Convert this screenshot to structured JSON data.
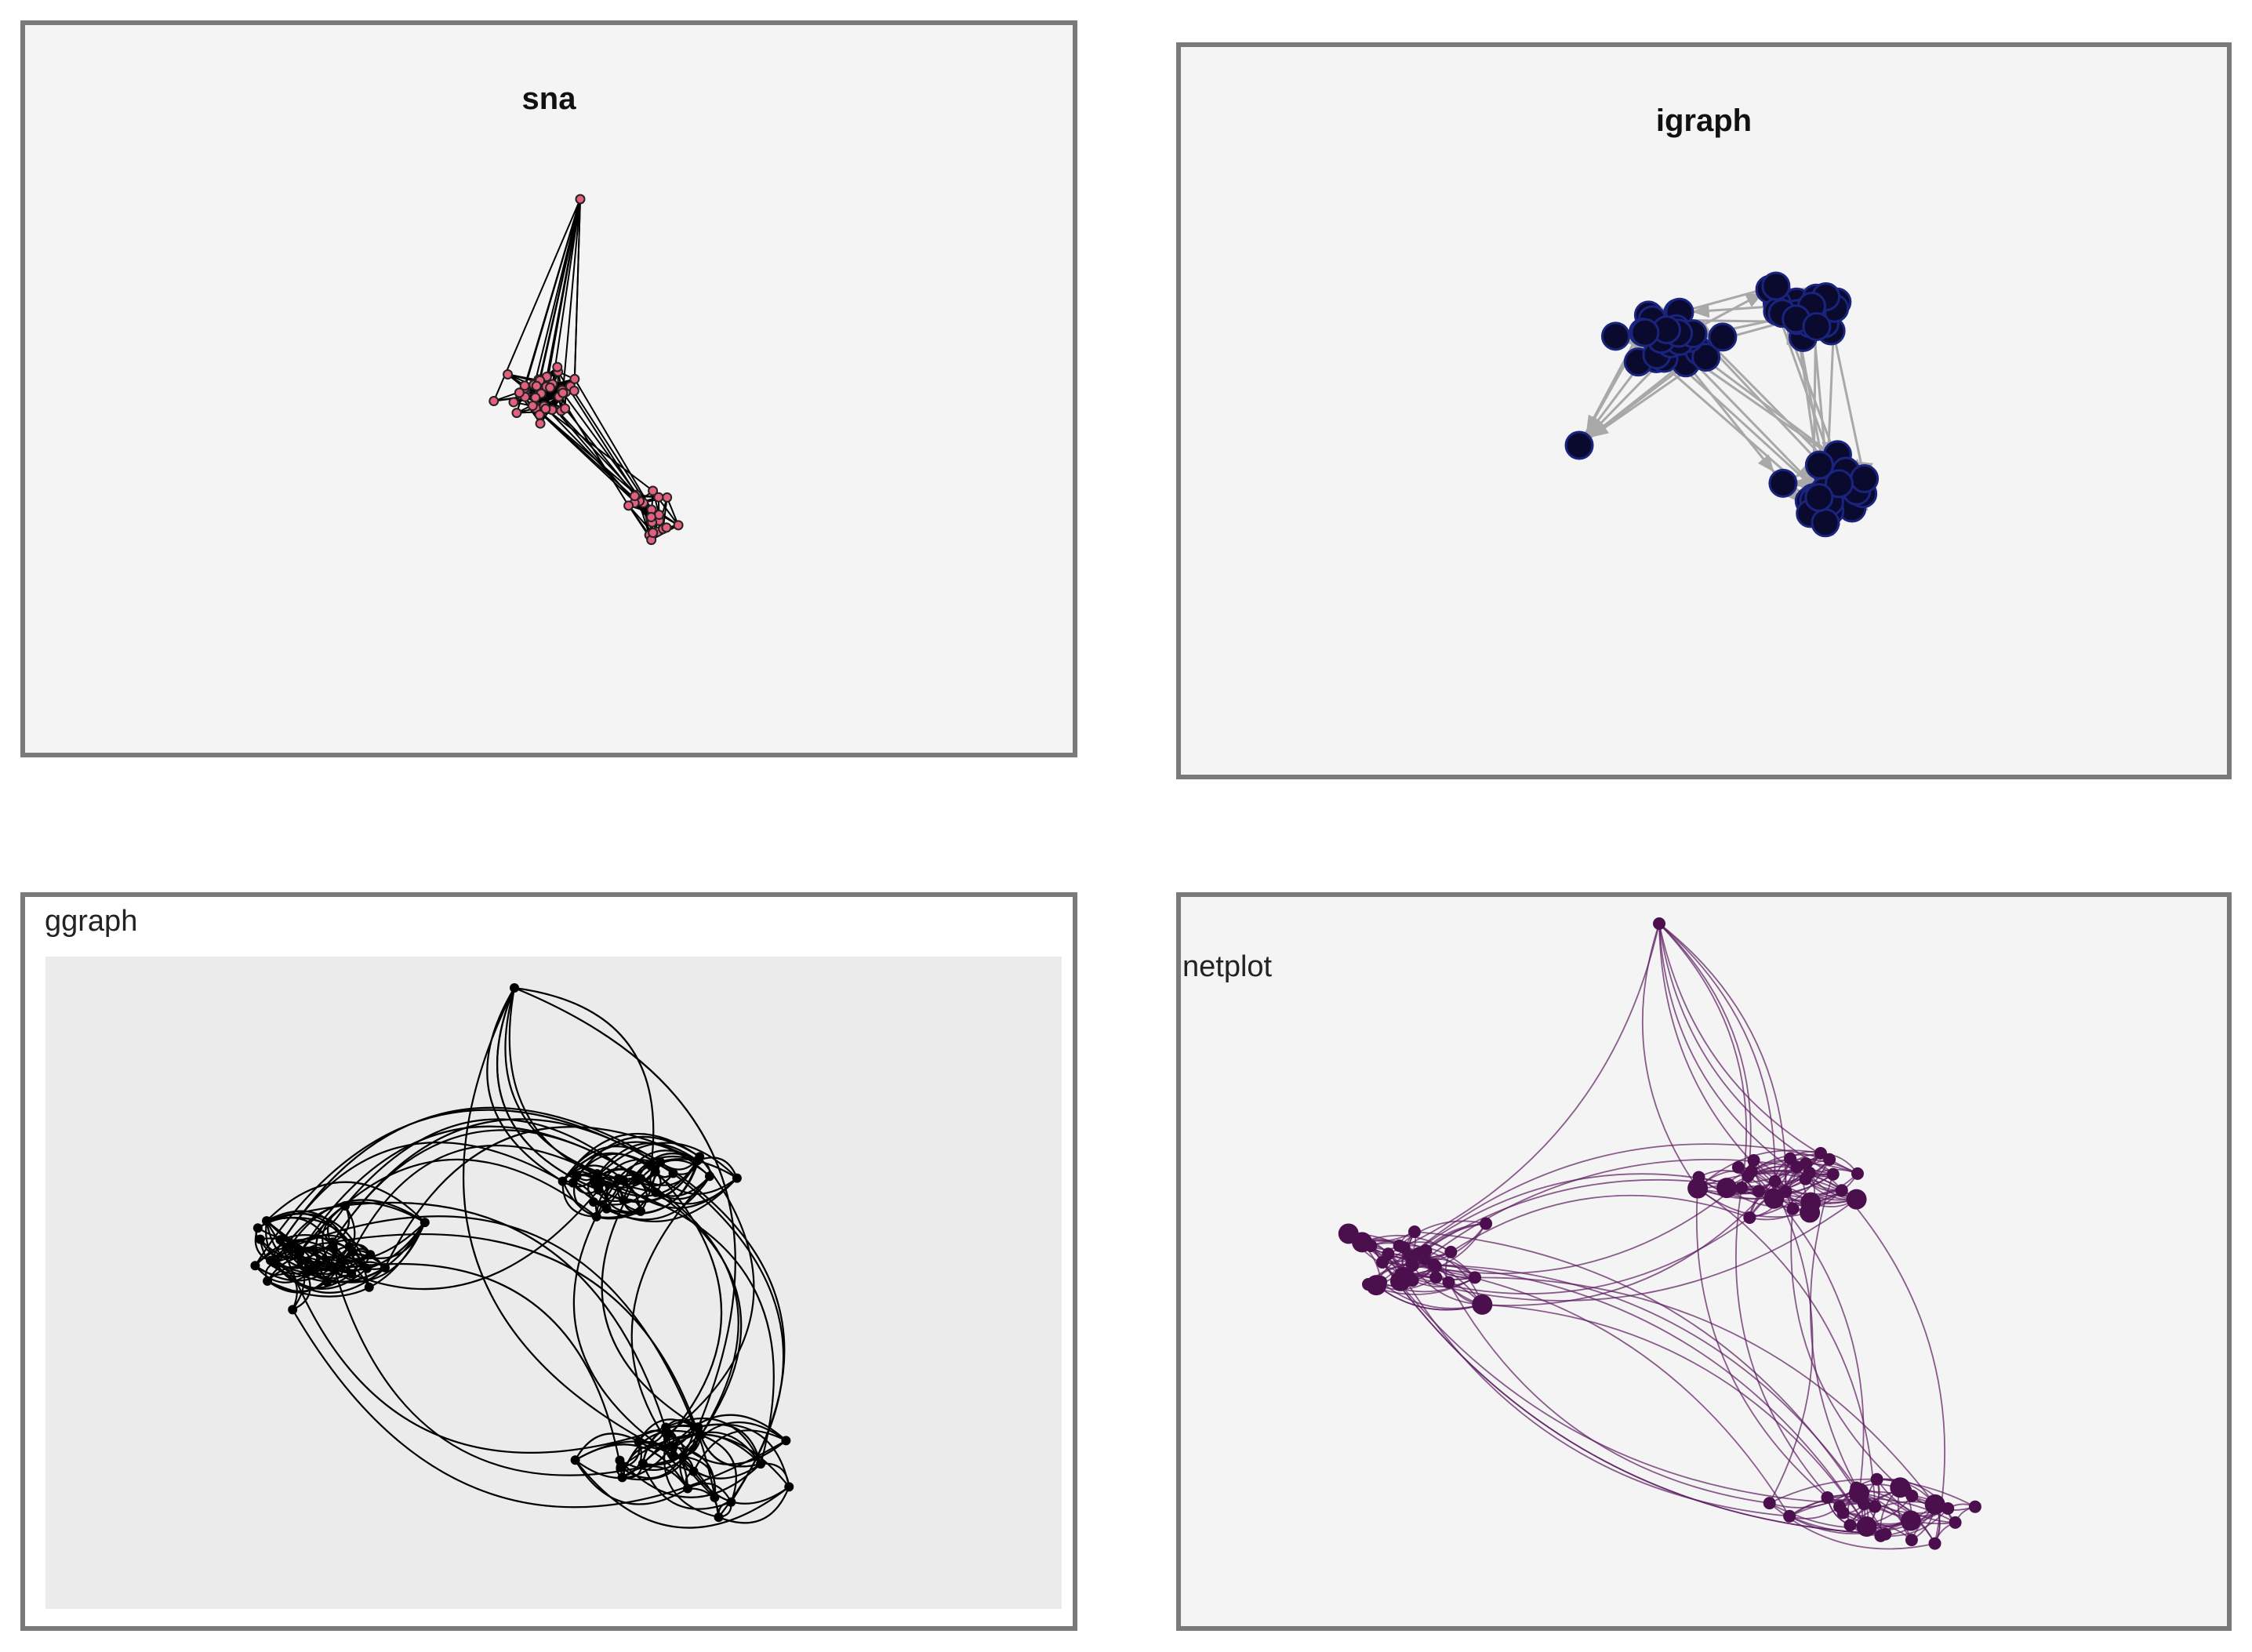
{
  "panels": {
    "sna": {
      "title": "sna",
      "node_color": "#e0607e",
      "edge_color": "#000000",
      "node_stroke": "#222222"
    },
    "igraph": {
      "title": "igraph",
      "node_color": "#0a0a2e",
      "edge_color": "#a8a8a8",
      "node_stroke": "#1a237e"
    },
    "ggraph": {
      "title": "ggraph",
      "node_color": "#000000",
      "edge_color": "#000000",
      "background": "#ebebeb"
    },
    "netplot": {
      "title": "netplot",
      "node_color": "#4b0f4e",
      "edge_color": "#5a1a5e"
    }
  }
}
